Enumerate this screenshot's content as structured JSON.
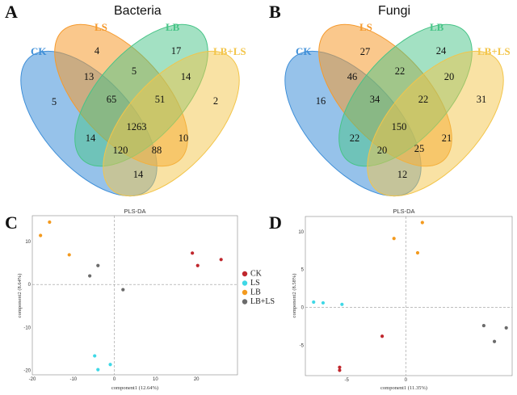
{
  "panels": {
    "A": "A",
    "B": "B",
    "C": "C",
    "D": "D"
  },
  "venn_labels": {
    "ck": "CK",
    "ls": "LS",
    "lb": "LB",
    "lbls": "LB+LS"
  },
  "colors": {
    "CK": "#3f8fd8",
    "LS": "#f59a2d",
    "LB": "#47c487",
    "LB+LS": "#f3c54a",
    "ck_point": "#c0272d",
    "ls_point": "#3fd8e6",
    "lb_point": "#f39a1e",
    "lbls_point": "#6b6b6b"
  },
  "chart_data": [
    {
      "type": "venn",
      "title": "Bacteria",
      "sets": [
        "CK",
        "LS",
        "LB",
        "LB+LS"
      ],
      "regions": {
        "CK": 5,
        "LS": 4,
        "LB": 17,
        "LB+LS": 2,
        "CK&LS": 13,
        "LS&LB": 5,
        "LB&LB+LS": 14,
        "CK&LS&LB": 65,
        "LS&LB&LB+LS": 51,
        "all": 1263,
        "CK&LB": 14,
        "LS&LB+LS": 10,
        "CK&LB&LB+LS": 120,
        "CK&LS&LB+LS": 88,
        "CK&LB+LS": 14
      }
    },
    {
      "type": "venn",
      "title": "Fungi",
      "sets": [
        "CK",
        "LS",
        "LB",
        "LB+LS"
      ],
      "regions": {
        "CK": 16,
        "LS": 27,
        "LB": 24,
        "LB+LS": 31,
        "CK&LS": 46,
        "LS&LB": 22,
        "LB&LB+LS": 20,
        "CK&LS&LB": 34,
        "LS&LB&LB+LS": 22,
        "all": 150,
        "CK&LB": 22,
        "LS&LB+LS": 21,
        "CK&LB&LB+LS": 20,
        "CK&LS&LB+LS": 25,
        "CK&LB+LS": 12
      }
    },
    {
      "type": "scatter",
      "title": "PLS-DA",
      "xlabel": "component1 (12.64%)",
      "ylabel": "component2 (8.64%)",
      "xlim": [
        -20,
        30
      ],
      "ylim": [
        -21,
        16
      ],
      "xticks": [
        -20,
        -10,
        0,
        10,
        20
      ],
      "yticks": [
        10,
        0,
        -10,
        -20
      ],
      "legend": [
        "CK",
        "LS",
        "LB",
        "LB+LS"
      ],
      "legend_position": "right",
      "series": [
        {
          "name": "CK",
          "points": [
            [
              19,
              7.3
            ],
            [
              20.3,
              4.4
            ],
            [
              26,
              5.8
            ]
          ]
        },
        {
          "name": "LS",
          "points": [
            [
              -4.8,
              -16.6
            ],
            [
              -4,
              -19.8
            ],
            [
              -1,
              -18.6
            ]
          ]
        },
        {
          "name": "LB",
          "points": [
            [
              -18,
              11.4
            ],
            [
              -15.8,
              14.5
            ],
            [
              -11,
              6.9
            ]
          ]
        },
        {
          "name": "LB+LS",
          "points": [
            [
              -6,
              2
            ],
            [
              -4,
              4.4
            ],
            [
              2.1,
              -1.2
            ]
          ]
        }
      ]
    },
    {
      "type": "scatter",
      "title": "PLS-DA",
      "xlabel": "component1 (11.35%)",
      "ylabel": "component2 (8.58%)",
      "xlim": [
        -8.5,
        9
      ],
      "ylim": [
        -9,
        12
      ],
      "xticks": [
        -5,
        0
      ],
      "yticks": [
        10,
        5,
        0,
        -5
      ],
      "series": [
        {
          "name": "CK",
          "points": [
            [
              -5.6,
              -7.9
            ],
            [
              -5.6,
              -8.3
            ],
            [
              -2,
              -3.8
            ]
          ]
        },
        {
          "name": "LS",
          "points": [
            [
              -7.8,
              0.7
            ],
            [
              -7,
              0.6
            ],
            [
              -5.4,
              0.4
            ]
          ]
        },
        {
          "name": "LB",
          "points": [
            [
              -1,
              9.1
            ],
            [
              1,
              7.2
            ],
            [
              1.4,
              11.2
            ]
          ]
        },
        {
          "name": "LB+LS",
          "points": [
            [
              6.6,
              -2.4
            ],
            [
              7.5,
              -4.5
            ],
            [
              8.5,
              -2.7
            ]
          ]
        }
      ]
    }
  ]
}
